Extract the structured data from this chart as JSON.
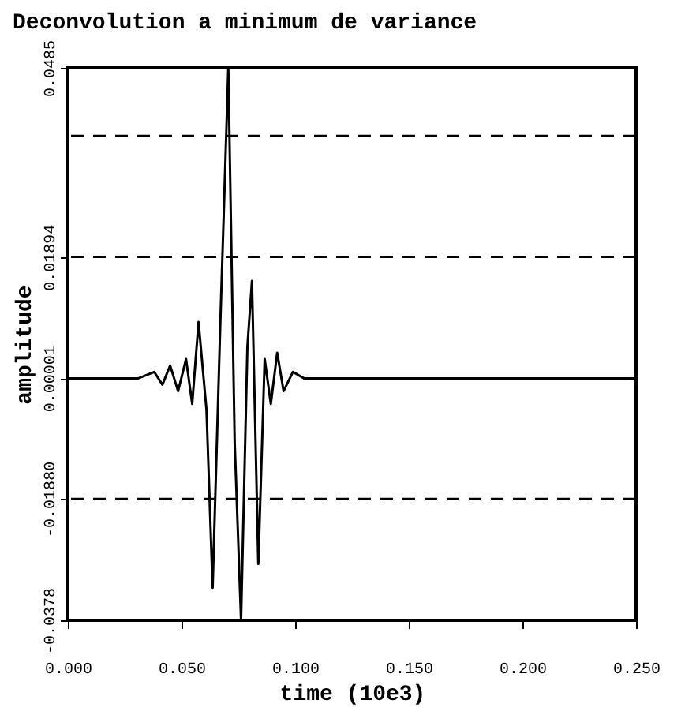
{
  "chart_data": {
    "type": "line",
    "title": "Deconvolution a minimum de variance",
    "xlabel": "time (10e3)",
    "ylabel": "amplitude",
    "x": [
      0,
      0.031,
      0.038,
      0.0416,
      0.045,
      0.0485,
      0.052,
      0.0547,
      0.0575,
      0.061,
      0.0637,
      0.0672,
      0.0706,
      0.0734,
      0.0762,
      0.079,
      0.081,
      0.0838,
      0.0866,
      0.0893,
      0.0921,
      0.0949,
      0.099,
      0.1039,
      0.25
    ],
    "series": [
      {
        "color": "#000000",
        "values": [
          0,
          0,
          0.001,
          -0.001,
          0.002,
          -0.002,
          0.003,
          -0.004,
          0.0088,
          -0.005,
          -0.0327,
          0.01,
          0.0485,
          -0.01,
          -0.0378,
          0.005,
          0.0152,
          -0.029,
          0.003,
          -0.004,
          0.004,
          -0.002,
          0.001,
          0,
          0
        ]
      }
    ],
    "xlim": [
      0,
      0.25
    ],
    "ylim": [
      -0.0378,
      0.0485
    ],
    "xticks": [
      {
        "value": 0,
        "label": "0.000"
      },
      {
        "value": 0.05,
        "label": "0.050"
      },
      {
        "value": 0.1,
        "label": "0.100"
      },
      {
        "value": 0.15,
        "label": "0.150"
      },
      {
        "value": 0.2,
        "label": "0.200"
      },
      {
        "value": 0.25,
        "label": "0.250"
      }
    ],
    "yticks": [
      {
        "value": -0.0378,
        "label": "-0.0378"
      },
      {
        "value": -0.0188,
        "label": "-0.01880"
      },
      {
        "value": 1e-05,
        "label": "0.00001"
      },
      {
        "value": 0.01894,
        "label": "0.01894"
      },
      {
        "value": 0.0485,
        "label": "0.0485"
      }
    ],
    "ref_lines": [
      {
        "axis": "y",
        "value": 0.0379,
        "line_style": "dashed"
      },
      {
        "axis": "y",
        "value": 0.01894,
        "line_style": "dashed"
      },
      {
        "axis": "y",
        "value": -0.0188,
        "line_style": "dashed"
      }
    ],
    "marker": "none",
    "line_style": "solid"
  }
}
